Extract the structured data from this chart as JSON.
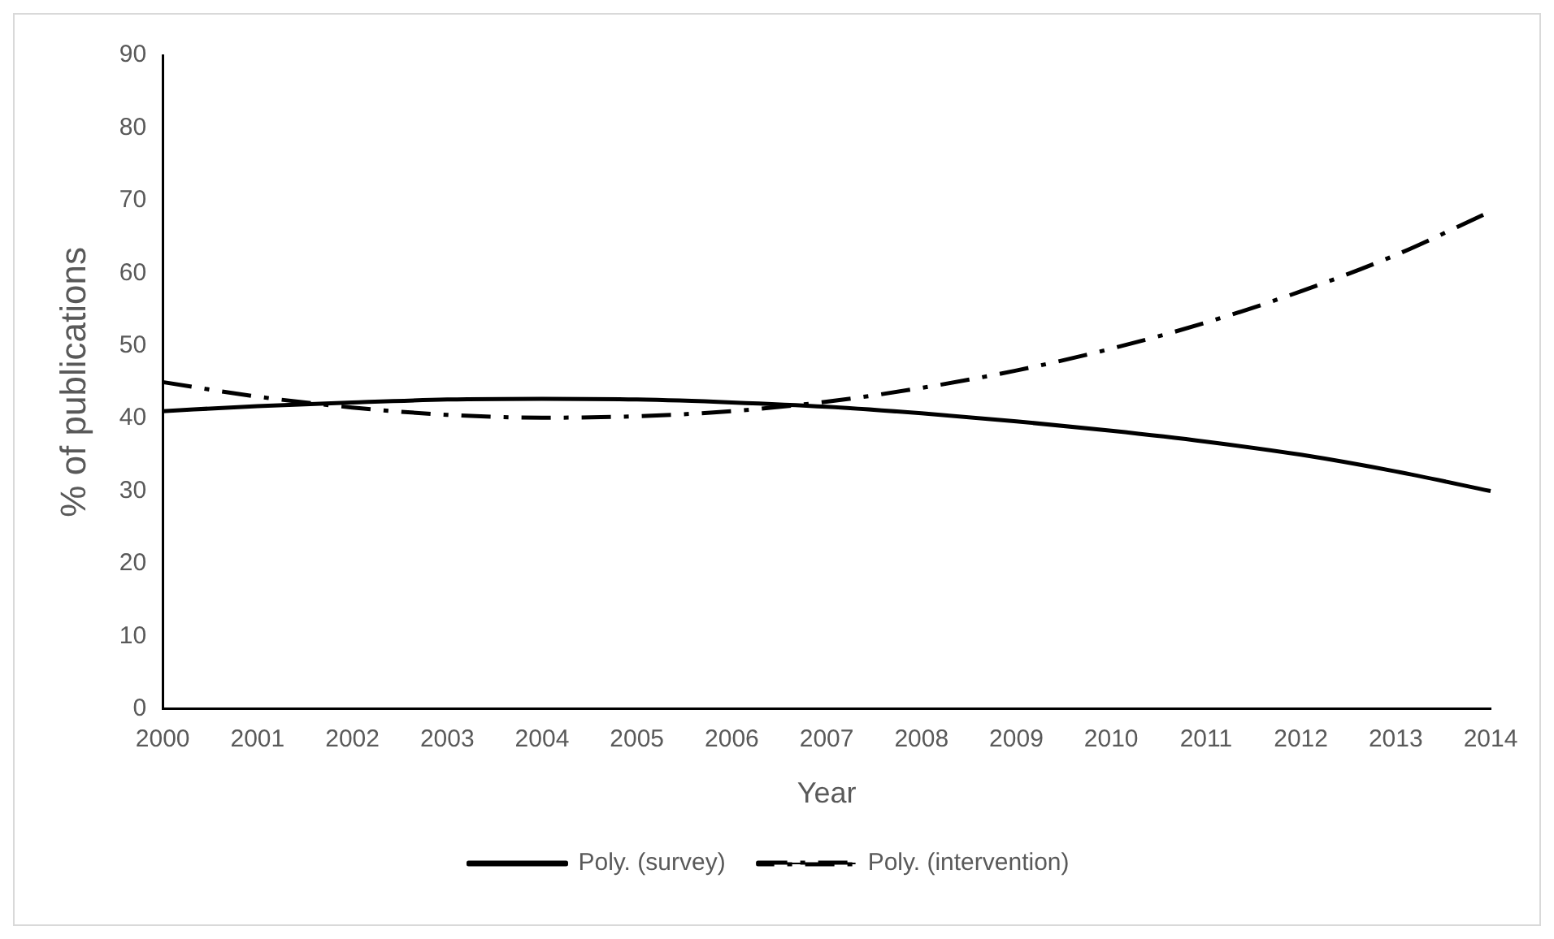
{
  "chart_data": {
    "type": "line",
    "xlabel": "Year",
    "ylabel": "% of publications",
    "categories": [
      "2000",
      "2001",
      "2002",
      "2003",
      "2004",
      "2005",
      "2006",
      "2007",
      "2008",
      "2009",
      "2010",
      "2011",
      "2012",
      "2013",
      "2014"
    ],
    "series": [
      {
        "name": "Poly. (survey)",
        "color": "#000000",
        "line_style": "solid",
        "values": [
          41,
          41.7,
          42.2,
          42.6,
          42.7,
          42.6,
          42.2,
          41.6,
          40.7,
          39.6,
          38.3,
          36.8,
          35,
          32.7,
          30
        ]
      },
      {
        "name": "Poly. (intervention)",
        "color": "#000000",
        "line_style": "dashed",
        "values": [
          45,
          43,
          41.5,
          40.5,
          40.1,
          40.3,
          41,
          42.3,
          44.2,
          46.6,
          49.6,
          53.2,
          57.5,
          62.5,
          68.5
        ]
      }
    ],
    "ylim": [
      0,
      90
    ],
    "yticks": [
      0,
      10,
      20,
      30,
      40,
      50,
      60,
      70,
      80,
      90
    ],
    "grid": false,
    "legend": "bottom",
    "marker": "none"
  }
}
